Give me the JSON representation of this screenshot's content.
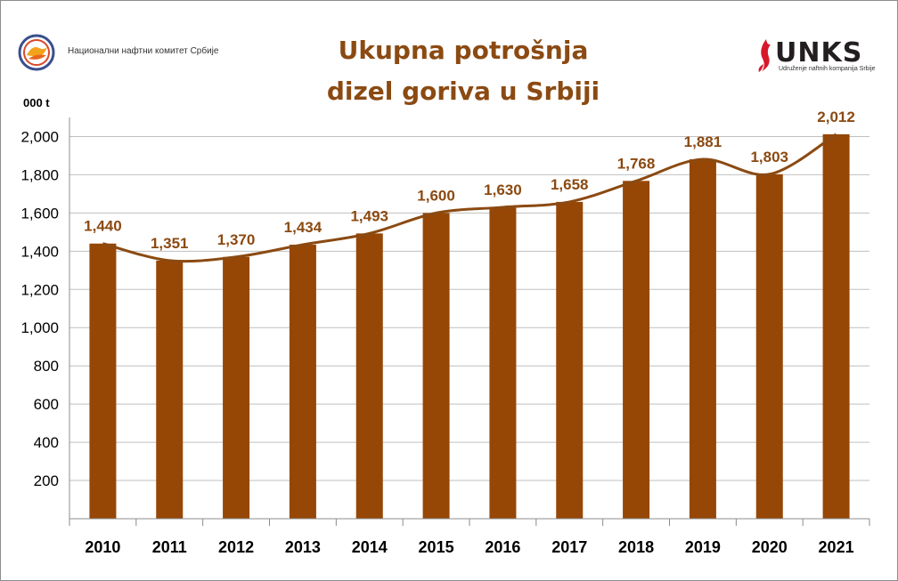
{
  "logos": {
    "left_text": "Национални нафтни комитет Србије",
    "right_brand": "UNKS",
    "right_sub": "Udruženje naftnih kompanija Srbije"
  },
  "colors": {
    "bar": "#964705",
    "line": "#8b4a12",
    "label": "#8b4a12",
    "grid": "#bfbfbf"
  },
  "chart_data": {
    "type": "bar",
    "title_lines": [
      "Ukupna potrošnja",
      "dizel goriva u Srbiji"
    ],
    "ylabel": "000 t",
    "categories": [
      "2010",
      "2011",
      "2012",
      "2013",
      "2014",
      "2015",
      "2016",
      "2017",
      "2018",
      "2019",
      "2020",
      "2021"
    ],
    "values": [
      1440,
      1351,
      1370,
      1434,
      1493,
      1600,
      1630,
      1658,
      1768,
      1881,
      1803,
      2012
    ],
    "value_labels": [
      "1,440",
      "1,351",
      "1,370",
      "1,434",
      "1,493",
      "1,600",
      "1,630",
      "1,658",
      "1,768",
      "1,881",
      "1,803",
      "2,012"
    ],
    "yticks": [
      200,
      400,
      600,
      800,
      1000,
      1200,
      1400,
      1600,
      1800,
      2000
    ],
    "ytick_labels": [
      "200",
      "400",
      "600",
      "800",
      "1,000",
      "1,200",
      "1,400",
      "1,600",
      "1,800",
      "2,000"
    ],
    "ylim": [
      0,
      2100
    ],
    "grid": true,
    "overlay": "smoothed trend line through bar tops"
  }
}
